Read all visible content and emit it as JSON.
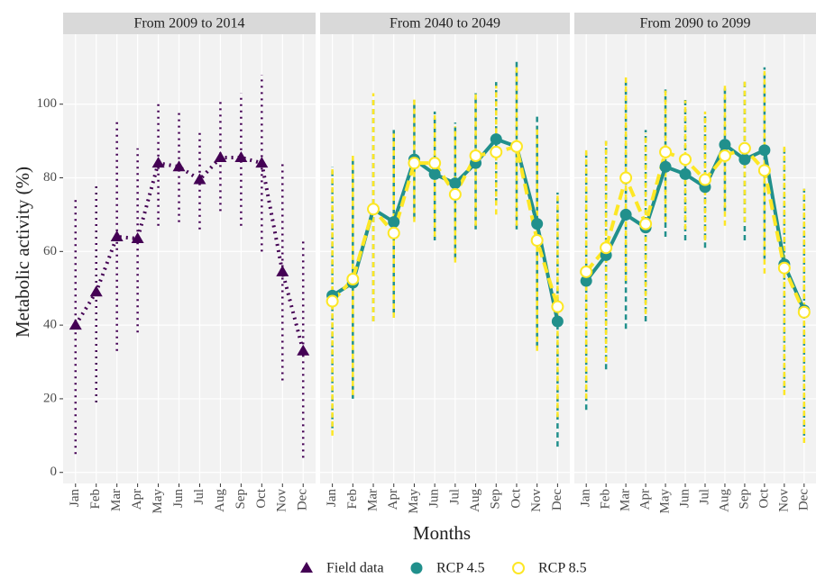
{
  "chart_data": {
    "type": "line",
    "ylabel": "Metabolic activity (%)",
    "xlabel": "Months",
    "ylim": [
      -3,
      119
    ],
    "yticks": [
      0,
      20,
      40,
      60,
      80,
      100
    ],
    "grid": true,
    "legend": "bottom",
    "categories": [
      "Jan",
      "Feb",
      "Mar",
      "Apr",
      "May",
      "Jun",
      "Jul",
      "Aug",
      "Sep",
      "Oct",
      "Nov",
      "Dec"
    ],
    "facets": [
      {
        "title": "From 2009 to 2014",
        "series": [
          {
            "name": "Field data",
            "color": "#440154",
            "linestyle": "dotted",
            "marker": "triangle",
            "values": [
              40,
              49,
              64,
              63.5,
              84,
              83,
              79.5,
              85.5,
              85.5,
              84,
              54.5,
              33
            ],
            "lower": [
              5,
              19,
              33,
              38,
              67,
              68,
              66,
              71,
              67,
              60,
              25,
              4
            ],
            "upper": [
              74,
              78,
              96,
              88,
              101,
              98,
              93,
              101,
              103,
              108,
              84,
              63
            ]
          }
        ]
      },
      {
        "title": "From 2040 to 2049",
        "series": [
          {
            "name": "RCP 4.5",
            "color": "#21908C",
            "linestyle": "solid",
            "marker": "circle",
            "values": [
              48,
              51.5,
              71.5,
              68,
              85,
              81,
              78.5,
              84,
              90.5,
              88.5,
              67.5,
              41
            ],
            "lower": [
              12,
              20,
              41,
              43,
              69,
              63,
              58,
              66,
              73,
              66,
              34,
              7
            ],
            "upper": [
              83,
              85,
              102,
              93,
              101,
              98,
              95,
              103,
              106,
              112,
              97,
              76
            ]
          },
          {
            "name": "RCP 8.5",
            "color": "#FDE725",
            "linestyle": "dashed",
            "marker": "open-circle",
            "values": [
              46.5,
              52.5,
              71.5,
              65,
              84,
              84,
              75.5,
              86,
              87,
              88.5,
              63,
              45
            ],
            "lower": [
              10,
              21,
              41,
              42,
              68,
              64,
              57,
              67,
              70,
              67,
              33,
              15
            ],
            "upper": [
              83,
              86,
              103,
              92,
              102,
              97,
              94,
              103,
              105,
              111,
              94,
              76
            ]
          }
        ]
      },
      {
        "title": "From 2090 to 2099",
        "series": [
          {
            "name": "RCP 4.5",
            "color": "#21908C",
            "linestyle": "solid",
            "marker": "circle",
            "values": [
              52,
              59,
              70,
              66.5,
              83,
              81,
              77.5,
              89,
              85,
              87.5,
              56.5,
              44
            ],
            "lower": [
              17,
              28,
              39,
              41,
              64,
              63,
              61,
              71,
              63,
              58,
              23,
              10
            ],
            "upper": [
              87,
              90,
              106,
              93,
              104,
              102,
              97,
              105,
              106,
              110,
              89,
              77
            ]
          },
          {
            "name": "RCP 8.5",
            "color": "#FDE725",
            "linestyle": "dashed",
            "marker": "open-circle",
            "values": [
              54.5,
              61,
              80,
              67.5,
              87,
              85,
              79.5,
              86,
              88,
              82,
              55.5,
              43.5
            ],
            "lower": [
              20,
              30,
              52,
              43,
              68,
              66,
              63,
              67,
              68,
              54,
              21,
              8
            ],
            "upper": [
              88,
              90,
              108,
              92,
              104,
              101,
              98,
              105,
              107,
              109,
              89,
              77
            ]
          }
        ]
      }
    ]
  }
}
